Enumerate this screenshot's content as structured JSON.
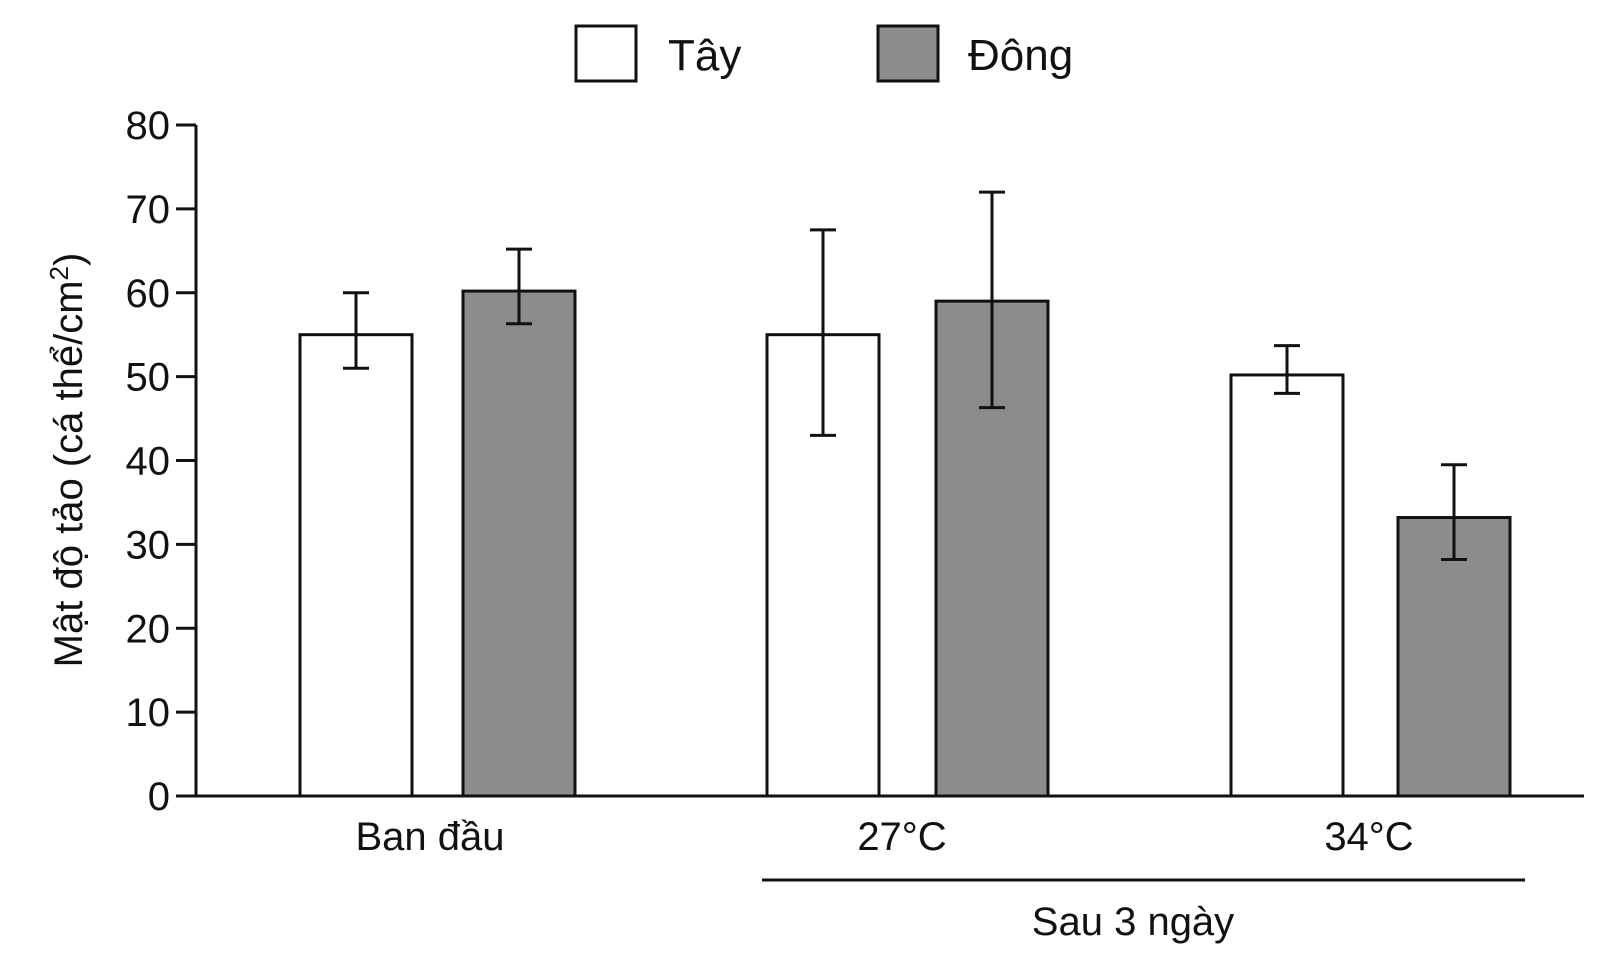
{
  "chart_data": {
    "type": "bar",
    "categories": [
      "Ban đầu",
      "27°C",
      "34°C"
    ],
    "group_label": "Sau 3 ngày",
    "group_label_spans": [
      "27°C",
      "34°C"
    ],
    "ylabel_text": "Mật độ tảo (cá thể/cm",
    "ylabel_superscript": "2",
    "ylabel_close": ")",
    "ylim": [
      0,
      80
    ],
    "yticks": [
      0,
      10,
      20,
      30,
      40,
      50,
      60,
      70,
      80
    ],
    "yticklabels": [
      "0",
      "10",
      "20",
      "30",
      "40",
      "50",
      "60",
      "70",
      "80"
    ],
    "grid": false,
    "legend_position": "top-center",
    "series": [
      {
        "name": "Tây",
        "color": "#ffffff",
        "values": [
          55,
          55,
          50.2
        ],
        "err_low": [
          51,
          43,
          48
        ],
        "err_high": [
          60,
          67.5,
          53.7
        ]
      },
      {
        "name": "Đông",
        "color": "#8c8c8c",
        "values": [
          60.2,
          59,
          33.2
        ],
        "err_low": [
          56.3,
          46.3,
          28.2
        ],
        "err_high": [
          65.2,
          72,
          39.5
        ]
      }
    ]
  }
}
